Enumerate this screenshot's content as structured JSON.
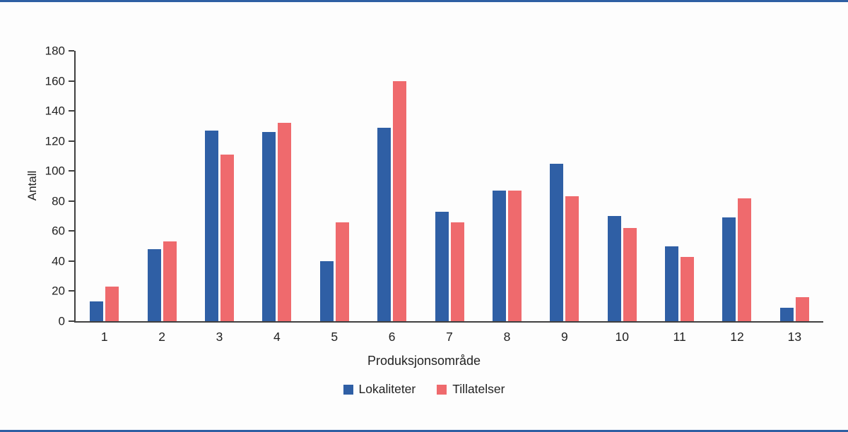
{
  "figure": {
    "accent_color": "#2e5fa3",
    "axis_color": "#404040",
    "background": "#fdfdfd"
  },
  "chart_data": {
    "type": "bar",
    "title": "",
    "categories": [
      "1",
      "2",
      "3",
      "4",
      "5",
      "6",
      "7",
      "8",
      "9",
      "10",
      "11",
      "12",
      "13"
    ],
    "series": [
      {
        "name": "Lokaliteter",
        "color": "#2f5fa5",
        "values": [
          13,
          48,
          127,
          126,
          40,
          129,
          73,
          87,
          105,
          70,
          50,
          69,
          9
        ]
      },
      {
        "name": "Tillatelser",
        "color": "#ef6a6d",
        "values": [
          23,
          53,
          111,
          132,
          66,
          160,
          66,
          87,
          83,
          62,
          43,
          82,
          16
        ]
      }
    ],
    "xlabel": "Produksjonsområde",
    "ylabel": "Antall",
    "ylim": [
      0,
      180
    ],
    "ytick_step": 20,
    "grid": false,
    "legend_position": "bottom"
  }
}
